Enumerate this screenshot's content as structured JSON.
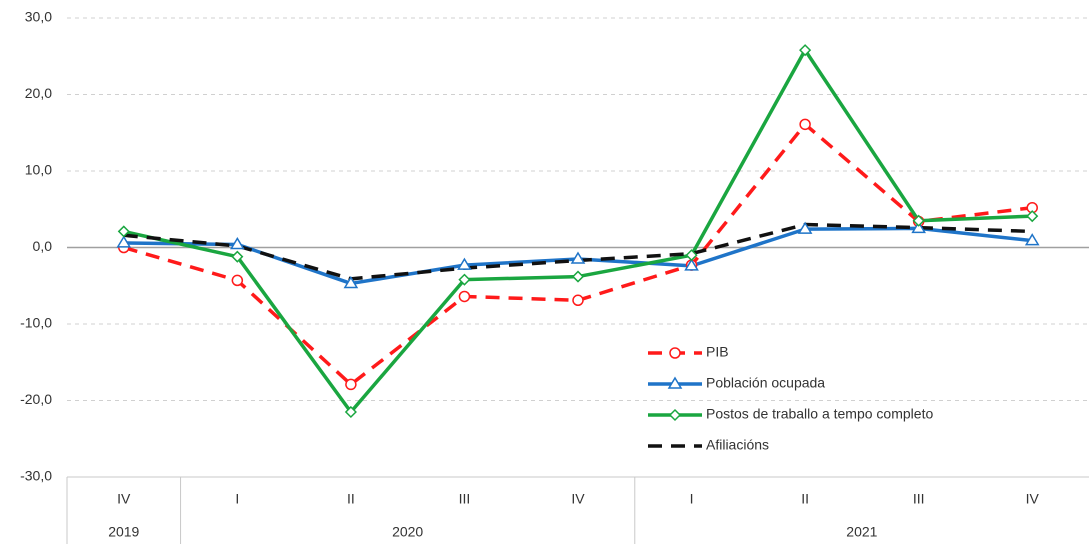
{
  "chart_data": {
    "type": "line",
    "categories": [
      "IV",
      "I",
      "II",
      "III",
      "IV",
      "I",
      "II",
      "III",
      "IV"
    ],
    "year_groups": [
      {
        "name": "2019",
        "count": 1
      },
      {
        "name": "2020",
        "count": 4
      },
      {
        "name": "2021",
        "count": 4
      }
    ],
    "series": [
      {
        "name": "PIB",
        "color": "#ff1a1a",
        "dash": true,
        "marker": "circle",
        "values": [
          0.0,
          -4.3,
          -17.9,
          -6.4,
          -6.9,
          -2.3,
          16.1,
          3.4,
          5.2
        ]
      },
      {
        "name": "Población ocupada",
        "color": "#1f74c8",
        "dash": false,
        "marker": "triangle",
        "values": [
          0.6,
          0.4,
          -4.7,
          -2.3,
          -1.5,
          -2.4,
          2.4,
          2.5,
          0.9
        ]
      },
      {
        "name": "Postos de traballo a tempo completo",
        "color": "#1aa640",
        "dash": false,
        "marker": "diamond",
        "values": [
          2.1,
          -1.2,
          -21.5,
          -4.2,
          -3.8,
          -1.0,
          25.8,
          3.5,
          4.1
        ]
      },
      {
        "name": "Afiliacións",
        "color": "#111111",
        "dash": true,
        "marker": "none",
        "values": [
          1.6,
          0.2,
          -4.1,
          -2.7,
          -1.7,
          -0.8,
          3.0,
          2.6,
          2.1
        ]
      }
    ],
    "ylim": [
      -30,
      30
    ],
    "yticks": [
      {
        "value": -30,
        "label": "-30,0"
      },
      {
        "value": -20,
        "label": "-20,0"
      },
      {
        "value": -10,
        "label": "-10,0"
      },
      {
        "value": 0,
        "label": "0,0"
      },
      {
        "value": 10,
        "label": "10,0"
      },
      {
        "value": 20,
        "label": "20,0"
      },
      {
        "value": 30,
        "label": "30,0"
      }
    ],
    "grid": true
  }
}
